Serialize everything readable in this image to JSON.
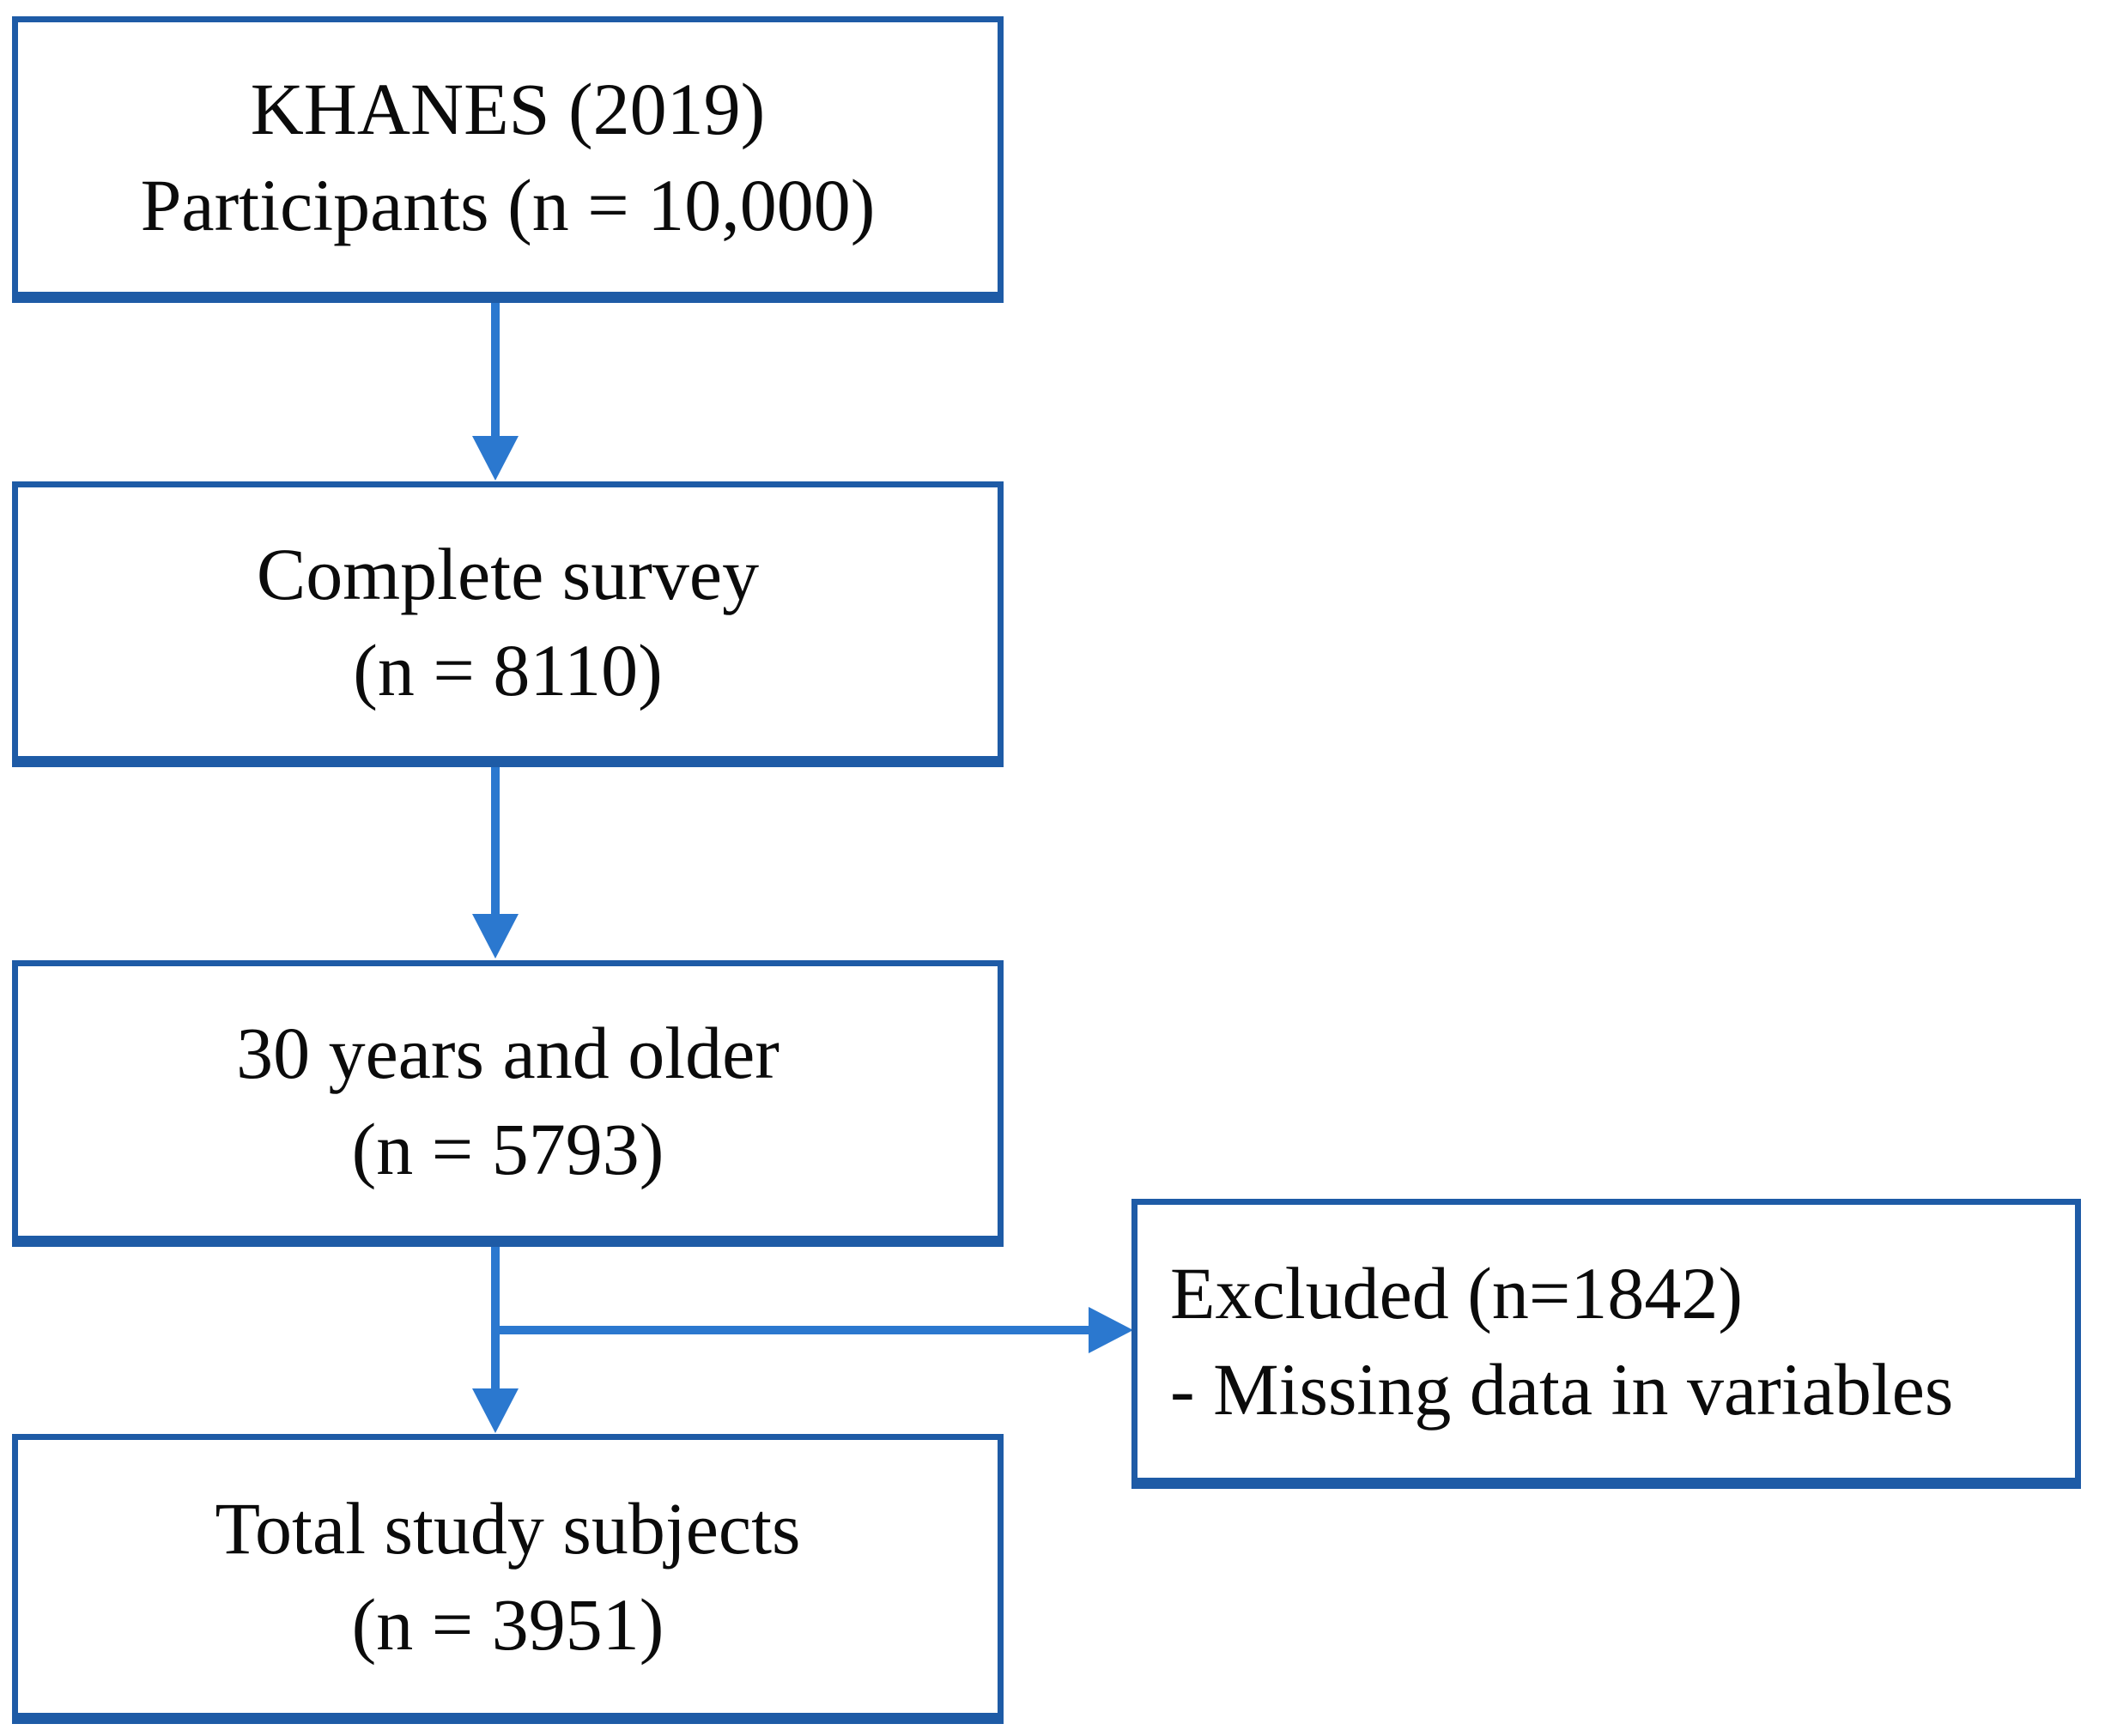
{
  "figure": {
    "type": "flowchart",
    "background": "#ffffff",
    "box_border_color": "#1e5ba6",
    "arrow_color": "#2b78cf",
    "text_color": "#0b0b0b",
    "boxes": {
      "participants": {
        "line1": "KHANES (2019)",
        "line2": "Participants (n = 10,000)"
      },
      "complete_survey": {
        "line1": "Complete survey",
        "line2": "(n = 8110)"
      },
      "age_30_older": {
        "line1": "30 years and older",
        "line2": "(n = 5793)"
      },
      "total_subjects": {
        "line1": "Total study subjects",
        "line2": "(n = 3951)"
      },
      "excluded": {
        "line1": "Excluded (n=1842)",
        "line2": "- Missing data in variables"
      }
    },
    "flow": [
      "participants -> complete_survey",
      "complete_survey -> age_30_older",
      "age_30_older -> total_subjects",
      "age_30_older -> excluded"
    ]
  }
}
